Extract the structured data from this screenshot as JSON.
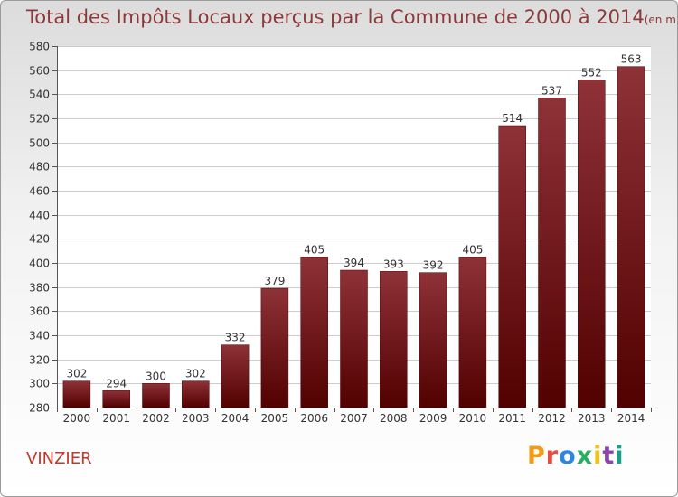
{
  "chart_data": {
    "type": "bar",
    "title": "Total des Impôts Locaux perçus par la Commune de 2000 à 2014",
    "unit_label": "(en milliers d'€)",
    "xlabel": "",
    "ylabel": "",
    "categories": [
      "2000",
      "2001",
      "2002",
      "2003",
      "2004",
      "2005",
      "2006",
      "2007",
      "2008",
      "2009",
      "2010",
      "2011",
      "2012",
      "2013",
      "2014"
    ],
    "values": [
      302,
      294,
      300,
      302,
      332,
      379,
      405,
      394,
      393,
      392,
      405,
      514,
      537,
      552,
      563
    ],
    "ylim": [
      280,
      580
    ],
    "yticks": [
      280,
      300,
      320,
      340,
      360,
      380,
      400,
      420,
      440,
      460,
      480,
      500,
      520,
      540,
      560,
      580
    ],
    "grid": true,
    "legend": "none"
  },
  "footer": {
    "commune": "VINZIER",
    "logo_text": "Proxiti"
  },
  "colors": {
    "bar_top": "#8e3238",
    "bar_bottom": "#520000",
    "title": "#8b3a3a",
    "commune": "#c0392b",
    "grid": "#cccccc",
    "logo": [
      "#f39c12",
      "#e74c3c",
      "#2e86de",
      "#27ae60",
      "#f1c40f",
      "#8e44ad",
      "#16a085"
    ]
  }
}
